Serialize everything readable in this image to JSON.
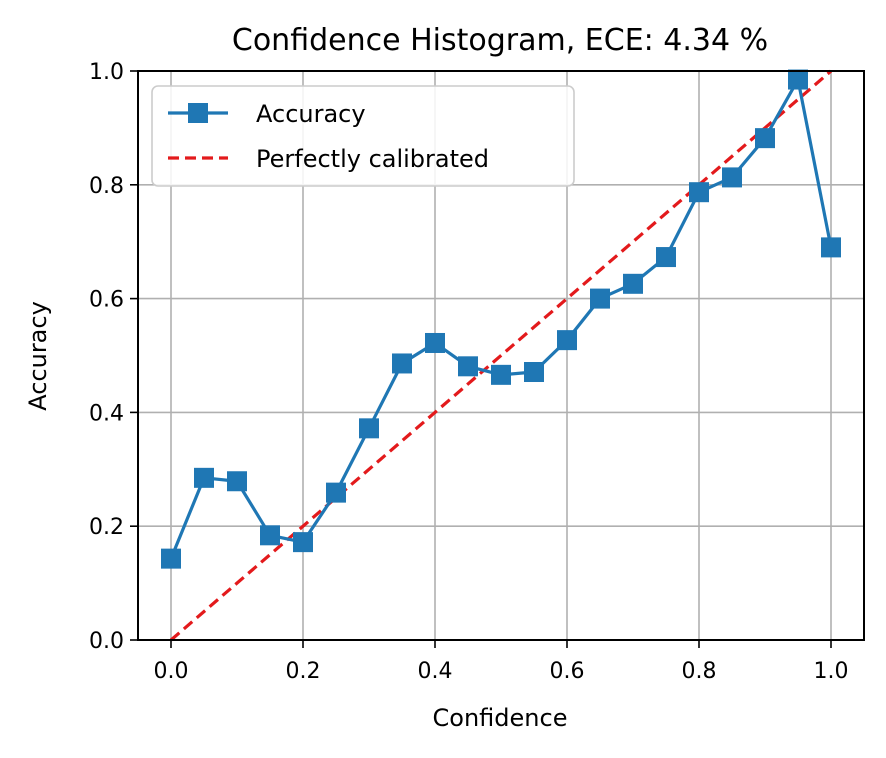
{
  "chart_data": {
    "type": "line",
    "title": "Confidence Histogram, ECE: 4.34 %",
    "xlabel": "Confidence",
    "ylabel": "Accuracy",
    "xlim": [
      -0.05,
      1.05
    ],
    "ylim": [
      0.0,
      1.0
    ],
    "grid": true,
    "legend_position": "top-left",
    "xticks": [
      "0.0",
      "0.2",
      "0.4",
      "0.6",
      "0.8",
      "1.0"
    ],
    "yticks": [
      "0.0",
      "0.2",
      "0.4",
      "0.6",
      "0.8",
      "1.0"
    ],
    "series": [
      {
        "name": "Accuracy",
        "style": "line-square-marker",
        "color": "#1f77b4",
        "x": [
          0.0,
          0.05,
          0.1,
          0.15,
          0.2,
          0.25,
          0.3,
          0.35,
          0.4,
          0.45,
          0.5,
          0.55,
          0.6,
          0.65,
          0.7,
          0.75,
          0.8,
          0.85,
          0.9,
          0.95,
          1.0
        ],
        "y": [
          0.143,
          0.285,
          0.279,
          0.184,
          0.172,
          0.259,
          0.372,
          0.486,
          0.522,
          0.481,
          0.466,
          0.471,
          0.527,
          0.6,
          0.626,
          0.673,
          0.787,
          0.813,
          0.882,
          0.985,
          0.69
        ]
      },
      {
        "name": "Perfectly calibrated",
        "style": "dashed",
        "color": "#e31a1c",
        "x": [
          0.0,
          1.0
        ],
        "y": [
          0.0,
          1.0
        ]
      }
    ]
  }
}
